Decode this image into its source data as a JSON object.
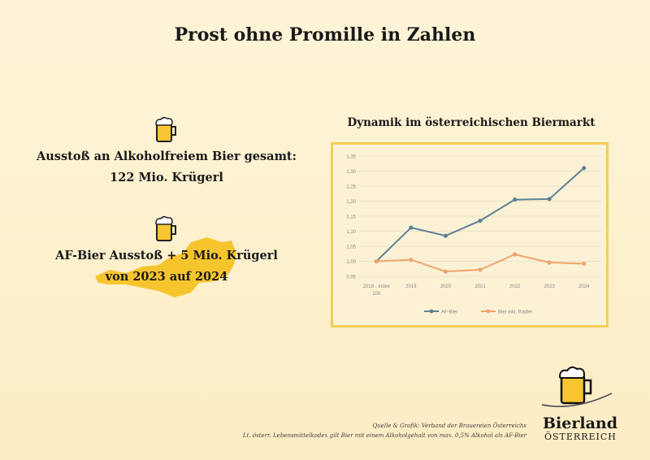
{
  "title": "Prost ohne Promille in Zahlen",
  "stat1": {
    "line1": "Ausstoß an Alkoholfreiem Bier gesamt:",
    "line2": "122 Mio. Krügerl"
  },
  "stat2": {
    "line1": "AF-Bier Ausstoß + 5 Mio. Krügerl",
    "line2": "von 2023 auf 2024"
  },
  "icons": {
    "beer": "beer-mug-icon",
    "map": "austria-map-icon"
  },
  "chart_data": {
    "type": "line",
    "title": "Dynamik im österreichischen Biermarkt",
    "categories": [
      "2018 - Index 100",
      "2019",
      "2020",
      "2021",
      "2022",
      "2023",
      "2024"
    ],
    "category_lines": [
      [
        "2018 - Index",
        "100"
      ],
      [
        "2019"
      ],
      [
        "2020"
      ],
      [
        "2021"
      ],
      [
        "2022"
      ],
      [
        "2023"
      ],
      [
        "2024"
      ]
    ],
    "yticks": [
      "1,35",
      "1,30",
      "1,25",
      "1,20",
      "1,15",
      "1,10",
      "1,05",
      "1,00",
      "0,95"
    ],
    "ylim": [
      0.95,
      1.35
    ],
    "grid": true,
    "legend_position": "bottom",
    "series": [
      {
        "name": "AF-Bier",
        "color": "#5f8296",
        "values": [
          1.0,
          1.112,
          1.085,
          1.135,
          1.205,
          1.207,
          1.31
        ]
      },
      {
        "name": "Bier inkl. Radler",
        "color": "#f0a36c",
        "values": [
          1.0,
          1.005,
          0.966,
          0.972,
          1.023,
          0.996,
          0.992
        ]
      }
    ]
  },
  "footer": {
    "source": "Quelle & Grafik: Verband der Brauereien Österreichs",
    "note": "Lt. österr. Lebensmittelkodex gilt Bier mit einem Alkoholgehalt von max. 0,5% Alkohol als AF-Bier"
  },
  "logo": {
    "name": "Bierland",
    "sub": "ÖSTERREICH"
  }
}
